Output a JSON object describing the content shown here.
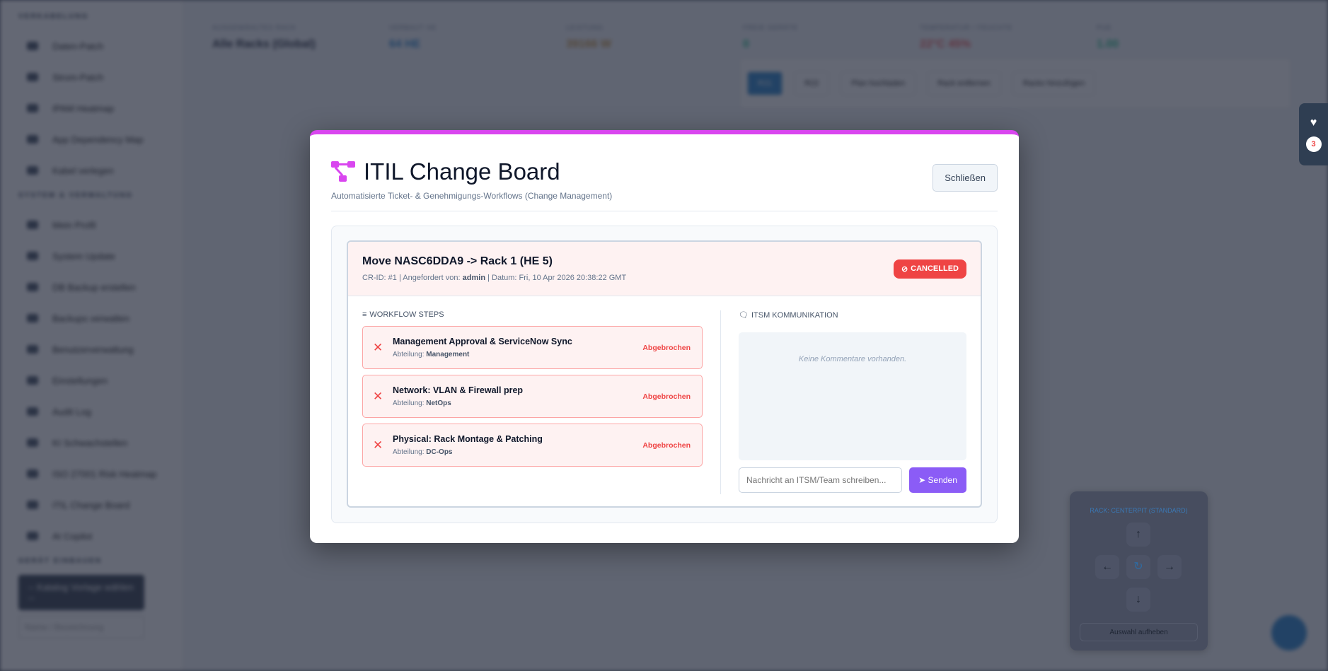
{
  "background": {
    "sidebar": {
      "sections": [
        {
          "title": "VERKABELUNG",
          "items": [
            "Daten-Patch",
            "Strom-Patch",
            "IPAM Heatmap",
            "App Dependency Map",
            "Kabel verlegen"
          ]
        },
        {
          "title": "SYSTEM & VERWALTUNG",
          "items": [
            "Mein Profil",
            "System Update",
            "DB Backup erstellen",
            "Backups verwalten",
            "Benutzerverwaltung",
            "Einstellungen",
            "Audit Log",
            "KI Schwachstellen",
            "ISO 27001 Risk Heatmap",
            "ITIL Change Board",
            "AI Copilot"
          ]
        },
        {
          "title": "GERÄT EINBAUEN"
        }
      ],
      "catalog_select": "-- Katalog Vorlage wählen --",
      "name_placeholder": "Name / Bezeichnung"
    },
    "stats": [
      {
        "label": "AUSGEWÄHLTES RACK",
        "value": "Alle Racks (Global)",
        "color": "#0f172a"
      },
      {
        "label": "VERBAUT HE",
        "value": "64 HE",
        "color": "#1478c8"
      },
      {
        "label": "LEISTUNG",
        "value": "39166 W",
        "color": "#c28a2c"
      },
      {
        "label": "FREIE GERÄTE",
        "value": "0",
        "color": "#10b981"
      },
      {
        "label": "TEMPERATUR / FEUCHTE",
        "value": "22°C   45%",
        "color": "#ef4444"
      },
      {
        "label": "PUE",
        "value": "1.00",
        "color": "#10b981"
      }
    ],
    "racks": [
      "R21",
      "R22",
      "Plan hochladen",
      "Rack entfernen",
      "Racks hinzufügen"
    ],
    "dpad_title": "RACK: CENTERPIT (STANDARD)",
    "dpad_reset": "Auswahl aufheben",
    "health_badge": "3"
  },
  "modal": {
    "title": "ITIL Change Board",
    "subtitle": "Automatisierte Ticket- & Genehmigungs-Workflows (Change Management)",
    "close_label": "Schließen",
    "accent": "#d946ef",
    "change": {
      "title": "Move NASC6DDA9 -> Rack 1 (HE 5)",
      "meta_prefix": "CR-ID: #1 | Angefordert von: ",
      "requester": "admin",
      "meta_suffix": " | Datum: Fri, 10 Apr 2026 20:38:22 GMT",
      "status": "CANCELLED",
      "status_color": "#ef4444"
    },
    "workflow_header": "WORKFLOW STEPS",
    "dept_label": "Abteilung: ",
    "steps": [
      {
        "name": "Management Approval & ServiceNow Sync",
        "dept": "Management",
        "status": "Abgebrochen"
      },
      {
        "name": "Network: VLAN & Firewall prep",
        "dept": "NetOps",
        "status": "Abgebrochen"
      },
      {
        "name": "Physical: Rack Montage & Patching",
        "dept": "DC-Ops",
        "status": "Abgebrochen"
      }
    ],
    "comm_header": "ITSM KOMMUNIKATION",
    "no_comments": "Keine Kommentare vorhanden.",
    "message_placeholder": "Nachricht an ITSM/Team schreiben...",
    "send_label": "Senden",
    "send_color": "#8b5cf6"
  }
}
